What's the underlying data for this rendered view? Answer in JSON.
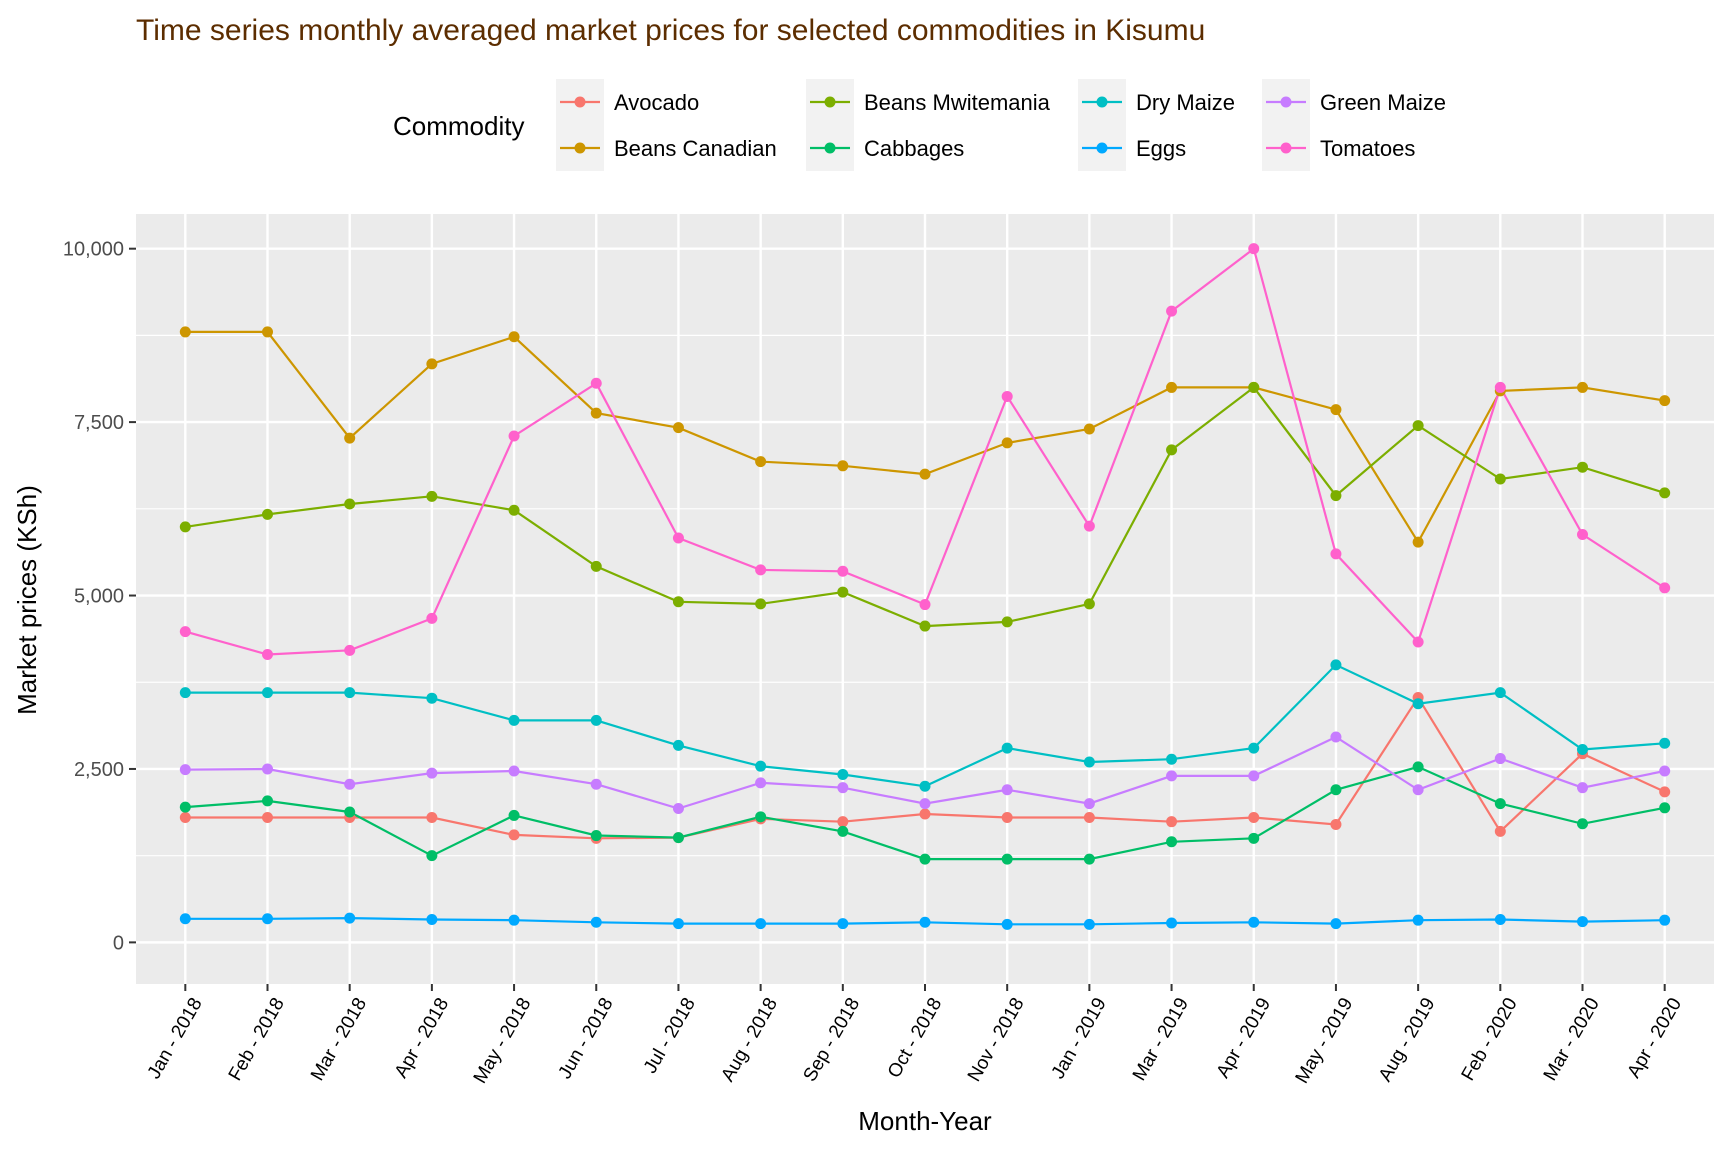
{
  "chart_data": {
    "type": "line",
    "title": "Time series monthly averaged market prices for selected commodities in Kisumu",
    "xlabel": "Month-Year",
    "ylabel": "Market prices (KSh)",
    "ylim": [
      -600,
      10500
    ],
    "yticks": [
      0,
      2500,
      5000,
      7500,
      10000
    ],
    "ytick_labels": [
      "0",
      "2,500",
      "5,000",
      "7,500",
      "10,000"
    ],
    "legend_title": "Commodity",
    "legend_position": "top",
    "grid": true,
    "categories": [
      "Jan - 2018",
      "Feb - 2018",
      "Mar - 2018",
      "Apr - 2018",
      "May - 2018",
      "Jun - 2018",
      "Jul - 2018",
      "Aug - 2018",
      "Sep - 2018",
      "Oct - 2018",
      "Nov - 2018",
      "Jan - 2019",
      "Mar - 2019",
      "Apr - 2019",
      "May - 2019",
      "Aug - 2019",
      "Feb - 2020",
      "Mar - 2020",
      "Apr - 2020"
    ],
    "series": [
      {
        "name": "Avocado",
        "color": "#F8766D",
        "values": [
          1800,
          1800,
          1800,
          1800,
          1550,
          1500,
          1510,
          1780,
          1740,
          1850,
          1800,
          1800,
          1740,
          1800,
          1700,
          3530,
          1600,
          2720,
          2170
        ]
      },
      {
        "name": "Beans Canadian",
        "color": "#CD9600",
        "values": [
          8800,
          8800,
          7270,
          8340,
          8730,
          7630,
          7420,
          6930,
          6870,
          6750,
          7200,
          7400,
          8000,
          8000,
          7680,
          5770,
          7950,
          8000,
          7810
        ]
      },
      {
        "name": "Beans Mwitemania",
        "color": "#7CAE00",
        "values": [
          5990,
          6170,
          6320,
          6430,
          6230,
          5420,
          4910,
          4880,
          5050,
          4560,
          4620,
          4880,
          7100,
          8000,
          6440,
          7450,
          6680,
          6850,
          6480
        ]
      },
      {
        "name": "Cabbages",
        "color": "#00BE67",
        "values": [
          1950,
          2040,
          1880,
          1250,
          1830,
          1540,
          1510,
          1810,
          1600,
          1200,
          1200,
          1200,
          1450,
          1500,
          2200,
          2530,
          2000,
          1710,
          1940
        ]
      },
      {
        "name": "Dry Maize",
        "color": "#00BFC4",
        "values": [
          3600,
          3600,
          3600,
          3520,
          3200,
          3200,
          2840,
          2540,
          2420,
          2250,
          2800,
          2600,
          2640,
          2800,
          4000,
          3440,
          3600,
          2780,
          2870
        ]
      },
      {
        "name": "Eggs",
        "color": "#00A9FF",
        "values": [
          340,
          340,
          350,
          330,
          320,
          290,
          270,
          270,
          270,
          290,
          260,
          260,
          280,
          290,
          270,
          320,
          330,
          300,
          320
        ]
      },
      {
        "name": "Green Maize",
        "color": "#C77CFF",
        "values": [
          2490,
          2500,
          2280,
          2440,
          2470,
          2280,
          1930,
          2300,
          2230,
          2000,
          2200,
          2000,
          2400,
          2400,
          2960,
          2200,
          2650,
          2230,
          2470
        ]
      },
      {
        "name": "Tomatoes",
        "color": "#FF61CC",
        "values": [
          4480,
          4150,
          4210,
          4670,
          7300,
          8060,
          5830,
          5370,
          5350,
          4870,
          7870,
          6000,
          9100,
          10000,
          5600,
          4330,
          8000,
          5880,
          5110
        ]
      }
    ]
  }
}
